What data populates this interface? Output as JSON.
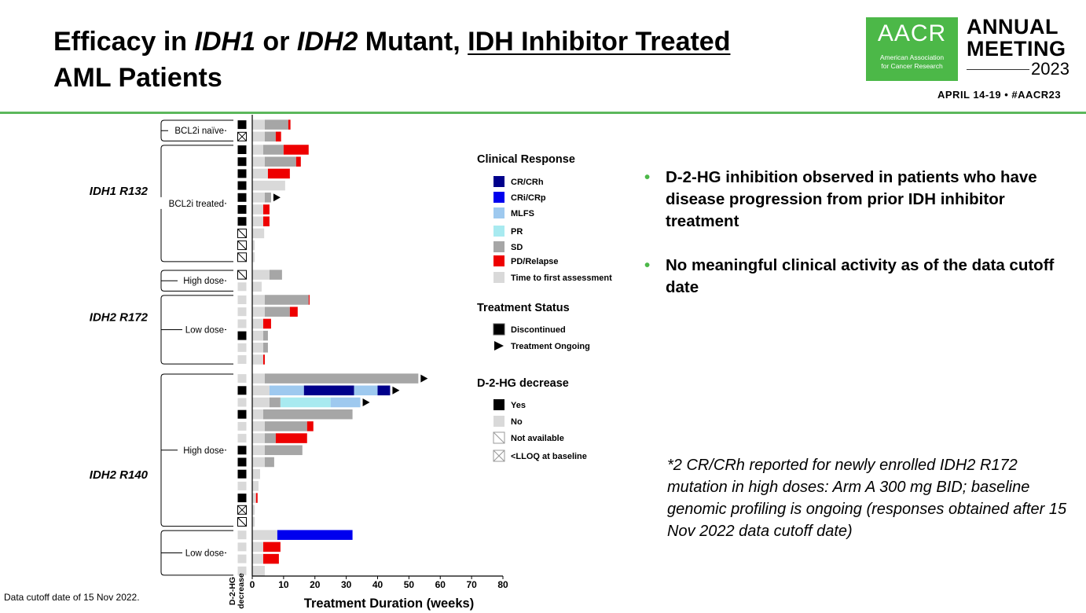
{
  "slide": {
    "title_part1": "Efficacy in ",
    "title_idh1": "IDH1",
    "title_or": " or ",
    "title_idh2": "IDH2",
    "title_mutant": " Mutant, ",
    "title_underlined": "IDH Inhibitor Treated",
    "title_line2": "AML Patients",
    "logo_text": "AACR",
    "logo_sub_line1": "American Association",
    "logo_sub_line2": "for Cancer Research",
    "annual_line1": "ANNUAL",
    "annual_line2": "MEETING",
    "year": "2023",
    "dates": "APRIL 14-19 • #AACR23",
    "bullets": [
      "D-2-HG inhibition observed in patients who have disease progression from prior IDH inhibitor treatment",
      "No meaningful clinical activity as of the data cutoff date"
    ],
    "footnote": "*2 CR/CRh reported for newly enrolled IDH2 R172 mutation in high doses: Arm A 300 mg BID; baseline genomic profiling is ongoing (responses obtained after 15 Nov 2022 data cutoff date)",
    "cutoff": "Data cutoff date of 15 Nov 2022."
  },
  "chart_data": {
    "type": "bar",
    "orientation": "horizontal-stacked-swimmer",
    "xlabel": "Treatment Duration (weeks)",
    "xlim": [
      0,
      80
    ],
    "xticks": [
      0,
      10,
      20,
      30,
      40,
      50,
      60,
      70,
      80
    ],
    "decrease_axis_label_line1": "D-2-HG",
    "decrease_axis_label_line2": "decrease",
    "colors": {
      "crh": "#00008b",
      "crp": "#0000ee",
      "mlfs": "#9ec9ef",
      "pr": "#a8eaf0",
      "sd": "#a6a6a6",
      "pd": "#ee0000",
      "tfa": "#d9d9d9"
    },
    "groups": [
      {
        "name": "IDH1 R132",
        "subgroups": [
          {
            "name": "BCL2i naïve",
            "patients": [
              {
                "decrease": "yes",
                "segments": [
                  [
                    "tfa",
                    0,
                    4
                  ],
                  [
                    "sd",
                    4,
                    11.5
                  ],
                  [
                    "pd",
                    11.5,
                    12.2
                  ]
                ],
                "ongoing": false
              },
              {
                "decrease": "lloq",
                "segments": [
                  [
                    "tfa",
                    0,
                    4
                  ],
                  [
                    "sd",
                    4,
                    7.5
                  ],
                  [
                    "pd",
                    7.5,
                    9.2
                  ]
                ],
                "ongoing": false
              }
            ]
          },
          {
            "name": "BCL2i treated",
            "patients": [
              {
                "decrease": "yes",
                "segments": [
                  [
                    "tfa",
                    0,
                    3.5
                  ],
                  [
                    "sd",
                    3.5,
                    10
                  ],
                  [
                    "pd",
                    10,
                    18
                  ]
                ],
                "ongoing": false
              },
              {
                "decrease": "yes",
                "segments": [
                  [
                    "tfa",
                    0,
                    4
                  ],
                  [
                    "sd",
                    4,
                    14
                  ],
                  [
                    "pd",
                    14,
                    15.5
                  ]
                ],
                "ongoing": false
              },
              {
                "decrease": "yes",
                "segments": [
                  [
                    "tfa",
                    0,
                    5
                  ],
                  [
                    "pd",
                    5,
                    12
                  ]
                ],
                "ongoing": false
              },
              {
                "decrease": "yes",
                "segments": [
                  [
                    "tfa",
                    0,
                    10.5
                  ]
                ],
                "ongoing": false
              },
              {
                "decrease": "yes",
                "segments": [
                  [
                    "tfa",
                    0,
                    4
                  ],
                  [
                    "sd",
                    4,
                    6
                  ]
                ],
                "ongoing": true
              },
              {
                "decrease": "yes",
                "segments": [
                  [
                    "tfa",
                    0,
                    3.5
                  ],
                  [
                    "pd",
                    3.5,
                    5.5
                  ]
                ],
                "ongoing": false
              },
              {
                "decrease": "yes",
                "segments": [
                  [
                    "tfa",
                    0,
                    3.5
                  ],
                  [
                    "pd",
                    3.5,
                    5.5
                  ]
                ],
                "ongoing": false
              },
              {
                "decrease": "na",
                "segments": [
                  [
                    "tfa",
                    0,
                    3.8
                  ]
                ],
                "ongoing": false
              },
              {
                "decrease": "na",
                "segments": [
                  [
                    "tfa",
                    0,
                    0.8
                  ]
                ],
                "ongoing": false
              },
              {
                "decrease": "na",
                "segments": [
                  [
                    "tfa",
                    0,
                    0.8
                  ]
                ],
                "ongoing": false
              }
            ]
          }
        ]
      },
      {
        "name": "IDH2 R172",
        "subgroups": [
          {
            "name": "High dose",
            "patients": [
              {
                "decrease": "na",
                "segments": [
                  [
                    "tfa",
                    0,
                    5.5
                  ],
                  [
                    "sd",
                    5.5,
                    9.5
                  ]
                ],
                "ongoing": false
              },
              {
                "decrease": "no",
                "segments": [
                  [
                    "tfa",
                    0,
                    3
                  ]
                ],
                "ongoing": false
              }
            ]
          },
          {
            "name": "Low dose",
            "patients": [
              {
                "decrease": "no",
                "segments": [
                  [
                    "tfa",
                    0,
                    4
                  ],
                  [
                    "sd",
                    4,
                    18
                  ],
                  [
                    "pd",
                    18,
                    18.3
                  ]
                ],
                "ongoing": false
              },
              {
                "decrease": "no",
                "segments": [
                  [
                    "tfa",
                    0,
                    4
                  ],
                  [
                    "sd",
                    4,
                    12
                  ],
                  [
                    "pd",
                    12,
                    14.5
                  ]
                ],
                "ongoing": false
              },
              {
                "decrease": "no",
                "segments": [
                  [
                    "tfa",
                    0,
                    3.5
                  ],
                  [
                    "pd",
                    3.5,
                    6
                  ]
                ],
                "ongoing": false
              },
              {
                "decrease": "yes",
                "segments": [
                  [
                    "tfa",
                    0,
                    3.5
                  ],
                  [
                    "sd",
                    3.5,
                    5
                  ]
                ],
                "ongoing": false
              },
              {
                "decrease": "no",
                "segments": [
                  [
                    "tfa",
                    0,
                    3.5
                  ],
                  [
                    "sd",
                    3.5,
                    5
                  ]
                ],
                "ongoing": false
              },
              {
                "decrease": "no",
                "segments": [
                  [
                    "tfa",
                    0,
                    3.5
                  ],
                  [
                    "pd",
                    3.5,
                    4
                  ]
                ],
                "ongoing": false
              }
            ]
          }
        ]
      },
      {
        "name": "IDH2 R140",
        "subgroups": [
          {
            "name": "High dose",
            "patients": [
              {
                "decrease": "no",
                "segments": [
                  [
                    "tfa",
                    0,
                    4
                  ],
                  [
                    "sd",
                    4,
                    53
                  ]
                ],
                "ongoing": true
              },
              {
                "decrease": "yes",
                "segments": [
                  [
                    "tfa",
                    0,
                    5.5
                  ],
                  [
                    "mlfs",
                    5.5,
                    16.5
                  ],
                  [
                    "crh",
                    16.5,
                    32.5
                  ],
                  [
                    "mlfs",
                    32.5,
                    40
                  ],
                  [
                    "crh",
                    40,
                    44
                  ]
                ],
                "ongoing": true
              },
              {
                "decrease": "no",
                "segments": [
                  [
                    "tfa",
                    0,
                    5.5
                  ],
                  [
                    "sd",
                    5.5,
                    9
                  ],
                  [
                    "pr",
                    9,
                    25
                  ],
                  [
                    "mlfs",
                    25,
                    34.5
                  ]
                ],
                "ongoing": true
              },
              {
                "decrease": "yes",
                "segments": [
                  [
                    "tfa",
                    0,
                    3.5
                  ],
                  [
                    "sd",
                    3.5,
                    32
                  ]
                ],
                "ongoing": false
              },
              {
                "decrease": "no",
                "segments": [
                  [
                    "tfa",
                    0,
                    4
                  ],
                  [
                    "sd",
                    4,
                    17.5
                  ],
                  [
                    "pd",
                    17.5,
                    19.5
                  ]
                ],
                "ongoing": false
              },
              {
                "decrease": "no",
                "segments": [
                  [
                    "tfa",
                    0,
                    4
                  ],
                  [
                    "sd",
                    4,
                    7.5
                  ],
                  [
                    "pd",
                    7.5,
                    17.5
                  ]
                ],
                "ongoing": false
              },
              {
                "decrease": "yes",
                "segments": [
                  [
                    "tfa",
                    0,
                    4
                  ],
                  [
                    "sd",
                    4,
                    16
                  ]
                ],
                "ongoing": false
              },
              {
                "decrease": "yes",
                "segments": [
                  [
                    "tfa",
                    0,
                    4
                  ],
                  [
                    "sd",
                    4,
                    7
                  ]
                ],
                "ongoing": false
              },
              {
                "decrease": "yes",
                "segments": [
                  [
                    "tfa",
                    0,
                    2.5
                  ]
                ],
                "ongoing": false
              },
              {
                "decrease": "no",
                "segments": [
                  [
                    "tfa",
                    0,
                    2
                  ]
                ],
                "ongoing": false
              },
              {
                "decrease": "yes",
                "segments": [
                  [
                    "tfa",
                    0,
                    1.2
                  ],
                  [
                    "pd",
                    1.2,
                    1.7
                  ]
                ],
                "ongoing": false
              },
              {
                "decrease": "lloq",
                "segments": [
                  [
                    "tfa",
                    0,
                    0.8
                  ]
                ],
                "ongoing": false
              },
              {
                "decrease": "na",
                "segments": [
                  [
                    "tfa",
                    0,
                    0.8
                  ]
                ],
                "ongoing": false
              }
            ]
          },
          {
            "name": "Low dose",
            "patients": [
              {
                "decrease": "no",
                "segments": [
                  [
                    "tfa",
                    0,
                    8
                  ],
                  [
                    "crp",
                    8,
                    32
                  ]
                ],
                "ongoing": false
              },
              {
                "decrease": "no",
                "segments": [
                  [
                    "tfa",
                    0,
                    3.5
                  ],
                  [
                    "pd",
                    3.5,
                    9
                  ]
                ],
                "ongoing": false
              },
              {
                "decrease": "no",
                "segments": [
                  [
                    "tfa",
                    0,
                    3.5
                  ],
                  [
                    "pd",
                    3.5,
                    8.5
                  ]
                ],
                "ongoing": false
              },
              {
                "decrease": "no",
                "segments": [
                  [
                    "tfa",
                    0,
                    4
                  ]
                ],
                "ongoing": false
              }
            ]
          }
        ]
      }
    ],
    "legend": {
      "response_title": "Clinical Response",
      "response_items": [
        {
          "key": "crh",
          "label": "CR/CRh"
        },
        {
          "key": "crp",
          "label": "CRi/CRp"
        },
        {
          "key": "mlfs",
          "label": "MLFS"
        },
        {
          "key": "pr",
          "label": "PR"
        },
        {
          "key": "sd",
          "label": "SD"
        },
        {
          "key": "pd",
          "label": "PD/Relapse"
        },
        {
          "key": "tfa",
          "label": "Time to first assessment"
        }
      ],
      "status_title": "Treatment Status",
      "status_items": [
        {
          "key": "disc",
          "label": "Discontinued"
        },
        {
          "key": "ongoing",
          "label": "Treatment Ongoing"
        }
      ],
      "decrease_title": "D-2-HG decrease",
      "decrease_items": [
        {
          "key": "yes",
          "label": "Yes"
        },
        {
          "key": "no",
          "label": "No"
        },
        {
          "key": "na",
          "label": "Not available"
        },
        {
          "key": "lloq",
          "label": "<LLOQ at baseline"
        }
      ]
    }
  }
}
